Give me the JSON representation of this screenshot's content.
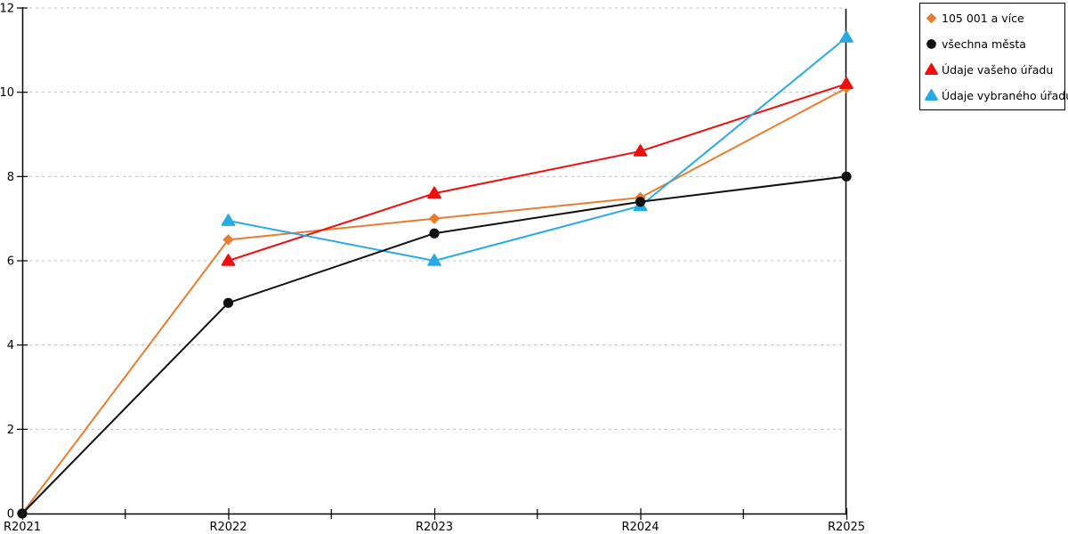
{
  "chart_data": {
    "type": "line",
    "title": "",
    "x_tick_labels": [
      "R2021",
      "R2022",
      "R2023",
      "R2024",
      "R2025"
    ],
    "y_ticks": [
      0,
      2,
      4,
      6,
      8,
      10,
      12
    ],
    "ylim": [
      0,
      12
    ],
    "grid": {
      "horizontal": true,
      "style": "dashed",
      "color": "#BFBFBF"
    },
    "axis_color": "#000000",
    "background_color": "#FFFFFF",
    "series": [
      {
        "name": "105 001 a více",
        "color": "#E87D2E",
        "marker": "diamond",
        "x": [
          "R2021",
          "R2022",
          "R2023",
          "R2024",
          "R2025"
        ],
        "values": [
          0,
          6.5,
          7.0,
          7.5,
          10.1
        ]
      },
      {
        "name": "Údaje vašeho úřadu",
        "color": "#F20D0D",
        "marker": "triangle",
        "x": [
          "R2022",
          "R2023",
          "R2024",
          "R2025"
        ],
        "values": [
          6.0,
          7.6,
          8.6,
          10.2
        ]
      },
      {
        "name": "Údaje vybraného úřadu",
        "color": "#29ABE2",
        "marker": "triangle",
        "x": [
          "R2022",
          "R2023",
          "R2024",
          "R2025"
        ],
        "values": [
          6.95,
          6.0,
          7.3,
          11.3
        ]
      },
      {
        "name": "všechna města",
        "color": "#111111",
        "marker": "circle",
        "x": [
          "R2021",
          "R2022",
          "R2023",
          "R2024",
          "R2025"
        ],
        "values": [
          0,
          5.0,
          6.65,
          7.4,
          8.0
        ]
      }
    ],
    "legend": {
      "position": "outside-top-right",
      "border_color": "#000000",
      "items": [
        {
          "label": "105 001 a více",
          "marker": "diamond",
          "color": "#E87D2E"
        },
        {
          "label": "všechna města",
          "marker": "circle",
          "color": "#111111"
        },
        {
          "label": "Údaje vašeho úřadu",
          "marker": "triangle",
          "color": "#F20D0D"
        },
        {
          "label": "Údaje vybraného úřadu",
          "marker": "triangle",
          "color": "#29ABE2"
        }
      ]
    }
  }
}
